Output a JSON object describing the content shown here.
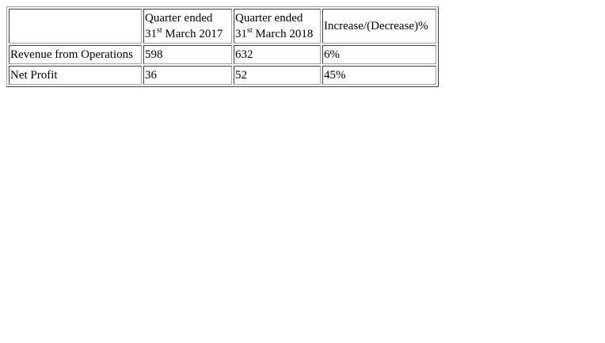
{
  "table": {
    "header": {
      "col1_line1": "Quarter ended",
      "col1_day": "31",
      "col1_suffix": "st",
      "col1_rest": " March 2017",
      "col2_line1": "Quarter ended",
      "col2_day": "31",
      "col2_suffix": "st",
      "col2_rest": " March 2018",
      "col3": "Increase/(Decrease)%"
    },
    "rows": [
      {
        "label": "Revenue from Operations",
        "q2017": "598",
        "q2018": "632",
        "change": "6%"
      },
      {
        "label": "Net Profit",
        "q2017": "36",
        "q2018": "52",
        "change": "45%"
      }
    ]
  }
}
